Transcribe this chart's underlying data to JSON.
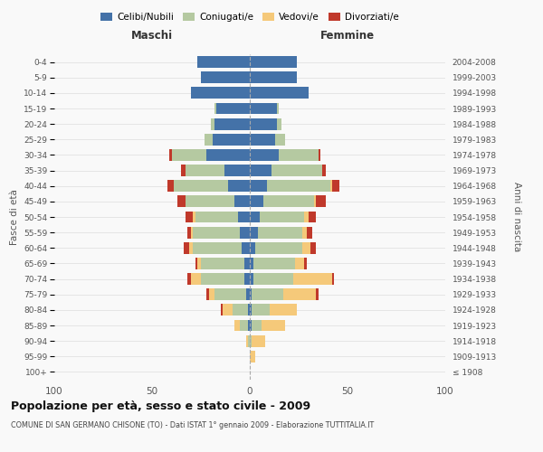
{
  "age_groups": [
    "100+",
    "95-99",
    "90-94",
    "85-89",
    "80-84",
    "75-79",
    "70-74",
    "65-69",
    "60-64",
    "55-59",
    "50-54",
    "45-49",
    "40-44",
    "35-39",
    "30-34",
    "25-29",
    "20-24",
    "15-19",
    "10-14",
    "5-9",
    "0-4"
  ],
  "birth_years": [
    "≤ 1908",
    "1909-1913",
    "1914-1918",
    "1919-1923",
    "1924-1928",
    "1929-1933",
    "1934-1938",
    "1939-1943",
    "1944-1948",
    "1949-1953",
    "1954-1958",
    "1959-1963",
    "1964-1968",
    "1969-1973",
    "1974-1978",
    "1979-1983",
    "1984-1988",
    "1989-1993",
    "1994-1998",
    "1999-2003",
    "2004-2008"
  ],
  "maschi": {
    "celibi": [
      0,
      0,
      0,
      1,
      1,
      2,
      3,
      3,
      4,
      5,
      6,
      8,
      11,
      13,
      22,
      19,
      18,
      17,
      30,
      25,
      27
    ],
    "coniugati": [
      0,
      0,
      1,
      4,
      8,
      16,
      22,
      22,
      25,
      24,
      22,
      25,
      28,
      20,
      18,
      4,
      2,
      1,
      0,
      0,
      0
    ],
    "vedovi": [
      0,
      0,
      1,
      3,
      5,
      3,
      5,
      2,
      2,
      1,
      1,
      0,
      0,
      0,
      0,
      0,
      0,
      0,
      0,
      0,
      0
    ],
    "divorziati": [
      0,
      0,
      0,
      0,
      1,
      1,
      2,
      1,
      3,
      2,
      4,
      4,
      3,
      2,
      1,
      0,
      0,
      0,
      0,
      0,
      0
    ]
  },
  "femmine": {
    "nubili": [
      0,
      0,
      0,
      1,
      1,
      1,
      2,
      2,
      3,
      4,
      5,
      7,
      9,
      11,
      15,
      13,
      14,
      14,
      30,
      24,
      24
    ],
    "coniugate": [
      0,
      0,
      1,
      5,
      9,
      16,
      20,
      21,
      24,
      23,
      23,
      26,
      32,
      26,
      20,
      5,
      2,
      1,
      0,
      0,
      0
    ],
    "vedove": [
      0,
      3,
      7,
      12,
      14,
      17,
      20,
      5,
      4,
      2,
      2,
      1,
      1,
      0,
      0,
      0,
      0,
      0,
      0,
      0,
      0
    ],
    "divorziate": [
      0,
      0,
      0,
      0,
      0,
      1,
      1,
      1,
      3,
      3,
      4,
      5,
      4,
      2,
      1,
      0,
      0,
      0,
      0,
      0,
      0
    ]
  },
  "colors": {
    "celibi": "#4472a8",
    "coniugati": "#b5c9a1",
    "vedovi": "#f5c97a",
    "divorziati": "#c0392b"
  },
  "title": "Popolazione per età, sesso e stato civile - 2009",
  "subtitle": "COMUNE DI SAN GERMANO CHISONE (TO) - Dati ISTAT 1° gennaio 2009 - Elaborazione TUTTITALIA.IT",
  "xlabel_maschi": "Maschi",
  "xlabel_femmine": "Femmine",
  "ylabel_left": "Fasce di età",
  "ylabel_right": "Anni di nascita",
  "xlim": 100,
  "bg_color": "#f9f9f9",
  "legend_labels": [
    "Celibi/Nubili",
    "Coniugati/e",
    "Vedovi/e",
    "Divorziati/e"
  ]
}
